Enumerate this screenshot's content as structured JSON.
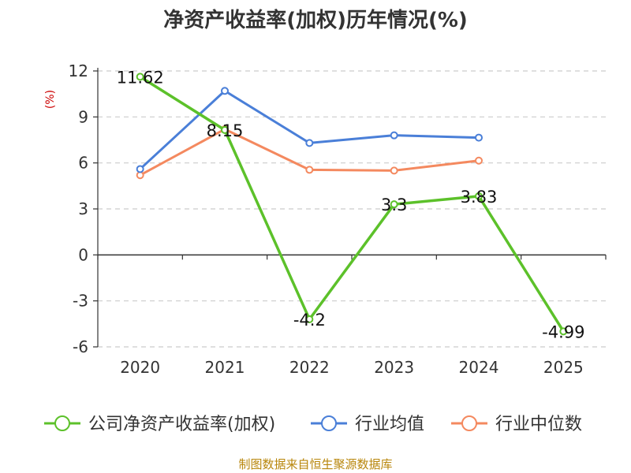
{
  "chart_data": {
    "type": "line",
    "title": "净资产收益率(加权)历年情况(%)",
    "ylabel": "(%)",
    "xlabel": "",
    "categories": [
      "2020",
      "2021",
      "2022",
      "2023",
      "2024",
      "2025"
    ],
    "yticks": [
      12,
      9,
      6,
      3,
      0,
      -3,
      -6
    ],
    "ylim": [
      -6,
      12
    ],
    "grid": true,
    "legend_position": "bottom",
    "series": [
      {
        "name": "公司净资产收益率(加权)",
        "color": "#5cc12a",
        "values": [
          11.62,
          8.15,
          -4.2,
          3.3,
          3.83,
          -4.99
        ],
        "labels": [
          "11.62",
          "8.15",
          "-4.2",
          "3.3",
          "3.83",
          "-4.99"
        ]
      },
      {
        "name": "行业均值",
        "color": "#4a7fd8",
        "values": [
          5.6,
          10.7,
          7.3,
          7.8,
          7.65,
          null
        ]
      },
      {
        "name": "行业中位数",
        "color": "#f4895f",
        "values": [
          5.2,
          8.2,
          5.55,
          5.5,
          6.15,
          null
        ]
      }
    ],
    "source": "制图数据来自恒生聚源数据库"
  }
}
